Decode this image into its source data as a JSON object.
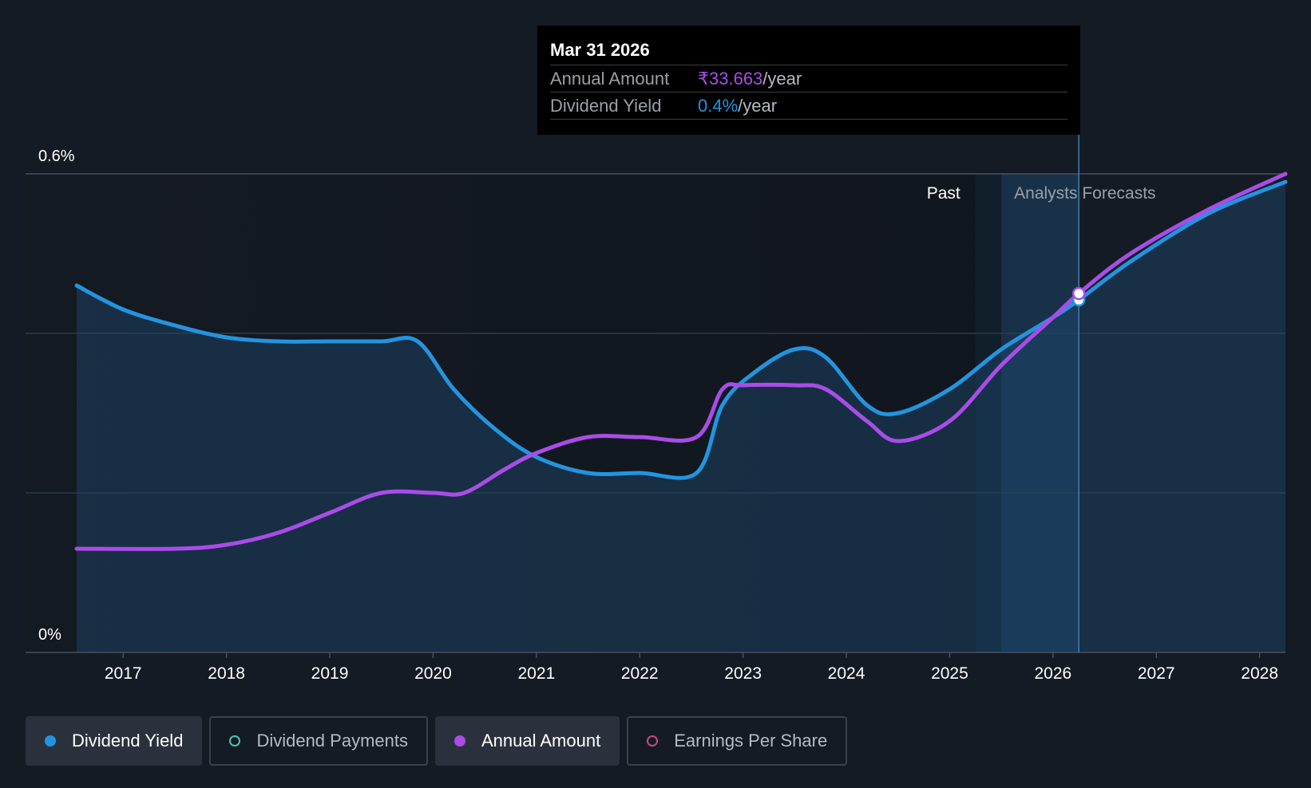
{
  "chart_data": {
    "type": "line",
    "title": "",
    "x_range": [
      2016.55,
      2028.25
    ],
    "ylim": [
      0,
      0.6
    ],
    "y_axis_labels": [
      "0.6%",
      "0%"
    ],
    "x_ticks": [
      "2017",
      "2018",
      "2019",
      "2020",
      "2021",
      "2022",
      "2023",
      "2024",
      "2025",
      "2026",
      "2027",
      "2028"
    ],
    "region_labels": {
      "past": "Past",
      "forecast": "Analysts Forecasts"
    },
    "past_end": 2025.25,
    "forecast_start": 2025.5,
    "series": [
      {
        "name": "Dividend Yield",
        "color": "#2394e0",
        "unit": "%",
        "points": [
          [
            2016.55,
            0.46
          ],
          [
            2017.0,
            0.43
          ],
          [
            2017.5,
            0.41
          ],
          [
            2018.0,
            0.395
          ],
          [
            2018.5,
            0.39
          ],
          [
            2019.0,
            0.39
          ],
          [
            2019.5,
            0.39
          ],
          [
            2019.85,
            0.39
          ],
          [
            2020.2,
            0.33
          ],
          [
            2020.6,
            0.28
          ],
          [
            2021.0,
            0.245
          ],
          [
            2021.5,
            0.225
          ],
          [
            2022.0,
            0.225
          ],
          [
            2022.55,
            0.225
          ],
          [
            2022.8,
            0.31
          ],
          [
            2023.1,
            0.35
          ],
          [
            2023.5,
            0.38
          ],
          [
            2023.8,
            0.37
          ],
          [
            2024.2,
            0.31
          ],
          [
            2024.5,
            0.3
          ],
          [
            2025.0,
            0.33
          ],
          [
            2025.5,
            0.38
          ],
          [
            2026.0,
            0.42
          ],
          [
            2026.25,
            0.442
          ],
          [
            2026.75,
            0.49
          ],
          [
            2027.5,
            0.55
          ],
          [
            2028.25,
            0.59
          ]
        ]
      },
      {
        "name": "Annual Amount",
        "color": "#a94ce8",
        "unit": "₹",
        "points": [
          [
            2016.55,
            0.13
          ],
          [
            2017.5,
            0.13
          ],
          [
            2018.0,
            0.135
          ],
          [
            2018.5,
            0.15
          ],
          [
            2019.0,
            0.175
          ],
          [
            2019.5,
            0.2
          ],
          [
            2020.0,
            0.2
          ],
          [
            2020.3,
            0.2
          ],
          [
            2020.7,
            0.23
          ],
          [
            2021.0,
            0.25
          ],
          [
            2021.5,
            0.27
          ],
          [
            2022.0,
            0.27
          ],
          [
            2022.55,
            0.27
          ],
          [
            2022.8,
            0.33
          ],
          [
            2023.0,
            0.335
          ],
          [
            2023.5,
            0.335
          ],
          [
            2023.8,
            0.33
          ],
          [
            2024.2,
            0.29
          ],
          [
            2024.5,
            0.265
          ],
          [
            2025.0,
            0.29
          ],
          [
            2025.5,
            0.36
          ],
          [
            2026.0,
            0.42
          ],
          [
            2026.25,
            0.45
          ],
          [
            2026.75,
            0.5
          ],
          [
            2027.5,
            0.555
          ],
          [
            2028.25,
            0.6
          ]
        ]
      }
    ],
    "highlight_x": 2026.25,
    "legend": [
      {
        "label": "Dividend Yield",
        "color": "#2394e0",
        "active": true,
        "filled": true
      },
      {
        "label": "Dividend Payments",
        "color": "#4fc2b8",
        "active": false,
        "filled": false
      },
      {
        "label": "Annual Amount",
        "color": "#a94ce8",
        "active": true,
        "filled": true
      },
      {
        "label": "Earnings Per Share",
        "color": "#c64a7f",
        "active": false,
        "filled": false
      }
    ]
  },
  "tooltip": {
    "date": "Mar 31 2026",
    "rows": [
      {
        "label": "Annual Amount",
        "value": "₹33.663",
        "unit": "/year",
        "color": "#a94ce8"
      },
      {
        "label": "Dividend Yield",
        "value": "0.4%",
        "unit": "/year",
        "color": "#2394e0"
      }
    ]
  }
}
